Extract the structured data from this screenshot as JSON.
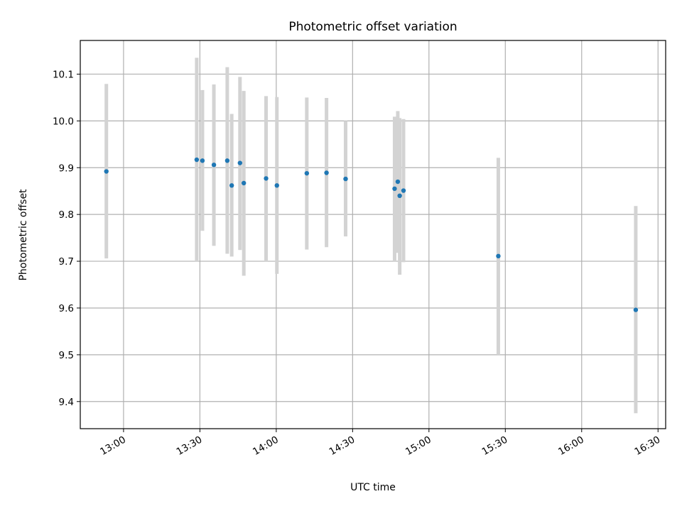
{
  "chart_data": {
    "type": "scatter",
    "title": "Photometric offset variation",
    "xlabel": "UTC time",
    "ylabel": "Photometric offset",
    "x_axis": "time",
    "xlim": [
      "12:43",
      "16:33"
    ],
    "ylim": [
      9.342,
      10.172
    ],
    "x_ticks": [
      "13:00",
      "13:30",
      "14:00",
      "14:30",
      "15:00",
      "15:30",
      "16:00",
      "16:30"
    ],
    "y_ticks": [
      9.4,
      9.5,
      9.6,
      9.7,
      9.8,
      9.9,
      10.0,
      10.1
    ],
    "y_tick_labels": [
      "9.4",
      "9.5",
      "9.6",
      "9.7",
      "9.8",
      "9.9",
      "10.0",
      "10.1"
    ],
    "grid": true,
    "point_color": "#1f77b4",
    "errorbar_color": "#d3d3d3",
    "series": [
      {
        "points": [
          {
            "x": "12:53:15",
            "y": 9.892,
            "y_low": 9.706,
            "y_high": 10.079
          },
          {
            "x": "13:28:45",
            "y": 9.917,
            "y_low": 9.7,
            "y_high": 10.135
          },
          {
            "x": "13:31:00",
            "y": 9.915,
            "y_low": 9.765,
            "y_high": 10.066
          },
          {
            "x": "13:35:30",
            "y": 9.906,
            "y_low": 9.733,
            "y_high": 10.078
          },
          {
            "x": "13:40:45",
            "y": 9.915,
            "y_low": 9.716,
            "y_high": 10.115
          },
          {
            "x": "13:42:30",
            "y": 9.862,
            "y_low": 9.71,
            "y_high": 10.015
          },
          {
            "x": "13:45:45",
            "y": 9.91,
            "y_low": 9.724,
            "y_high": 10.094
          },
          {
            "x": "13:47:15",
            "y": 9.867,
            "y_low": 9.669,
            "y_high": 10.064
          },
          {
            "x": "13:56:00",
            "y": 9.877,
            "y_low": 9.7,
            "y_high": 10.053
          },
          {
            "x": "14:00:15",
            "y": 9.862,
            "y_low": 9.673,
            "y_high": 10.051
          },
          {
            "x": "14:12:00",
            "y": 9.888,
            "y_low": 9.725,
            "y_high": 10.05
          },
          {
            "x": "14:19:45",
            "y": 9.889,
            "y_low": 9.73,
            "y_high": 10.049
          },
          {
            "x": "14:27:15",
            "y": 9.876,
            "y_low": 9.753,
            "y_high": 10.0
          },
          {
            "x": "14:46:30",
            "y": 9.855,
            "y_low": 9.7,
            "y_high": 10.009
          },
          {
            "x": "14:47:45",
            "y": 9.87,
            "y_low": 9.718,
            "y_high": 10.021
          },
          {
            "x": "14:48:30",
            "y": 9.84,
            "y_low": 9.671,
            "y_high": 10.006
          },
          {
            "x": "14:50:00",
            "y": 9.851,
            "y_low": 9.698,
            "y_high": 10.004
          },
          {
            "x": "15:27:15",
            "y": 9.711,
            "y_low": 9.5,
            "y_high": 9.921
          },
          {
            "x": "16:21:15",
            "y": 9.596,
            "y_low": 9.375,
            "y_high": 9.818
          }
        ]
      }
    ]
  }
}
